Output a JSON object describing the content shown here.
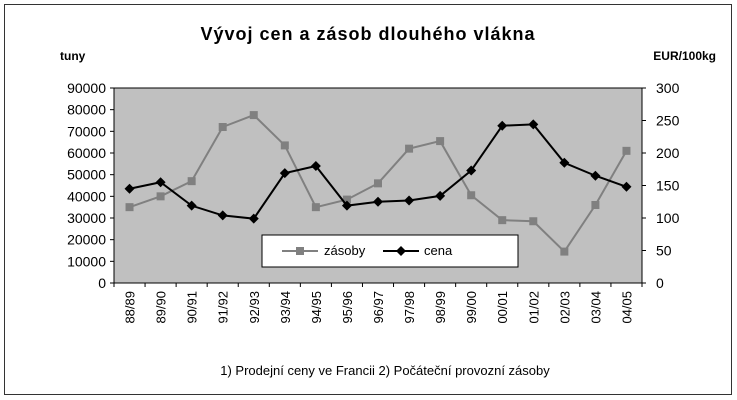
{
  "chart_data": {
    "type": "line",
    "title": "Vývoj cen  a zásob dlouhého vlákna",
    "ylabel_left": "tuny",
    "ylabel_right": "EUR/100kg",
    "footnote": "1) Prodejní ceny ve Francii  2) Počáteční provozní zásoby",
    "categories": [
      "88/89",
      "89/90",
      "90/91",
      "91/92",
      "92/93",
      "93/94",
      "94/95",
      "95/96",
      "96/97",
      "97/98",
      "98/99",
      "99/00",
      "00/01",
      "01/02",
      "02/03",
      "03/04",
      "04/05"
    ],
    "y_left": {
      "min": 0,
      "max": 90000,
      "ticks": [
        0,
        10000,
        20000,
        30000,
        40000,
        50000,
        60000,
        70000,
        80000,
        90000
      ]
    },
    "y_right": {
      "min": 0,
      "max": 300,
      "ticks": [
        0,
        50,
        100,
        150,
        200,
        250,
        300
      ]
    },
    "grid": false,
    "legend_position": "bottom-center inside plot",
    "plot_background": "#c0c0c0",
    "series": [
      {
        "name": "zásoby",
        "axis": "left",
        "color": "#808080",
        "marker": "square",
        "values": [
          35000,
          40000,
          47000,
          72000,
          77500,
          63500,
          35000,
          38500,
          46000,
          62000,
          65500,
          40500,
          29000,
          28500,
          14500,
          36000,
          61000
        ]
      },
      {
        "name": "cena",
        "axis": "right",
        "color": "#000000",
        "marker": "diamond",
        "values": [
          145,
          155,
          119,
          104,
          99,
          169,
          180,
          119,
          125,
          127,
          134,
          173,
          242,
          244,
          185,
          165,
          148
        ]
      }
    ]
  }
}
